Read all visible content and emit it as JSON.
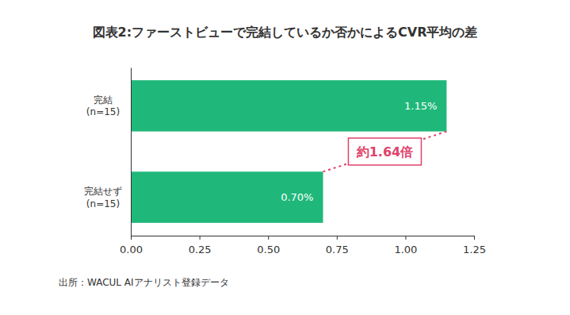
{
  "chart_data": {
    "type": "bar",
    "title": "図表2:ファーストビューで完結しているか否かによるCVR平均の差",
    "orientation": "horizontal",
    "categories": [
      "完結\n(n=15)",
      "完結せず\n(n=15)"
    ],
    "values": [
      1.15,
      0.7
    ],
    "value_labels": [
      "1.15%",
      "0.70%"
    ],
    "data_labels": true,
    "color": "#1fb87a",
    "xlim": [
      0,
      1.25
    ],
    "xticks": [
      {
        "value": 0,
        "label": "0.00"
      },
      0.25,
      {
        "value": 0.5,
        "label": "0.50"
      },
      0.75,
      {
        "value": 1,
        "label": "1.00"
      },
      1.25
    ],
    "grid": false,
    "annotation": "約1.64倍",
    "source": "出所：WACUL AIアナリスト登録データ"
  }
}
